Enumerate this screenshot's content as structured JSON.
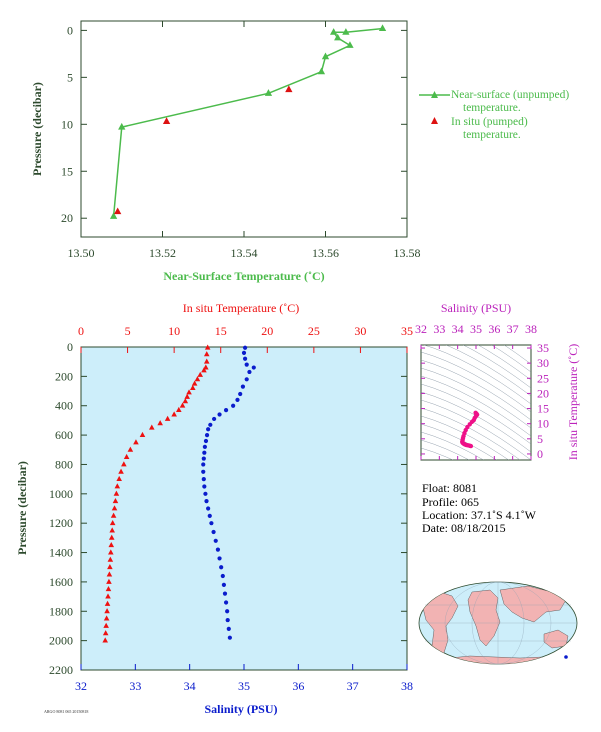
{
  "colors": {
    "axis": "#2d4a2d",
    "nearSurface": "#4cbb4c",
    "pumped": "#dd1111",
    "temperature": "#ee1111",
    "salinity": "#0a1ccc",
    "salinityAxis": "#bb22bb",
    "panelFill": "#cdeefa",
    "tsPoints": "#ee1188",
    "land": "#f2b3b3",
    "ocean": "#cdeefa"
  },
  "chart_data": [
    {
      "type": "line",
      "xlabel": "Near-Surface Temperature (˚C)",
      "ylabel": "Pressure (decibar)",
      "xlim": [
        13.5,
        13.58
      ],
      "ylim": [
        22,
        -1
      ],
      "xticks": [
        "13.50",
        "13.52",
        "13.54",
        "13.56",
        "13.58"
      ],
      "yticks": [
        "0",
        "5",
        "10",
        "15",
        "20"
      ],
      "legend": {
        "placement": "right",
        "entries": [
          "Near-surface (unpumped) temperature.",
          "In situ (pumped) temperature."
        ]
      },
      "series": [
        {
          "name": "Near-surface (unpumped) temperature.",
          "points": [
            [
              13.574,
              -0.2
            ],
            [
              13.565,
              0.2
            ],
            [
              13.562,
              0.2
            ],
            [
              13.563,
              0.8
            ],
            [
              13.566,
              1.6
            ],
            [
              13.56,
              2.8
            ],
            [
              13.559,
              4.4
            ],
            [
              13.546,
              6.7
            ],
            [
              13.51,
              10.3
            ],
            [
              13.508,
              19.8
            ]
          ]
        },
        {
          "name": "In situ (pumped) temperature.",
          "points": [
            [
              13.551,
              6.3
            ],
            [
              13.521,
              9.7
            ],
            [
              13.509,
              19.3
            ]
          ]
        }
      ]
    },
    {
      "type": "scatter",
      "ylabel": "Pressure (decibar)",
      "ylim": [
        2200,
        0
      ],
      "yticks": [
        "0",
        "200",
        "400",
        "600",
        "800",
        "1000",
        "1200",
        "1400",
        "1600",
        "1800",
        "2000",
        "2200"
      ],
      "top_axis": {
        "label": "In situ Temperature (˚C)",
        "range": [
          0,
          35
        ],
        "ticks": [
          "0",
          "5",
          "10",
          "15",
          "20",
          "25",
          "30",
          "35"
        ]
      },
      "bottom_axis": {
        "label": "Salinity (PSU)",
        "range": [
          32,
          38
        ],
        "ticks": [
          "32",
          "33",
          "34",
          "35",
          "36",
          "37",
          "38"
        ]
      },
      "series": [
        {
          "name": "In situ Temperature (˚C)",
          "points": [
            [
              13.6,
              5
            ],
            [
              13.5,
              50
            ],
            [
              13.5,
              100
            ],
            [
              13.4,
              140
            ],
            [
              13.2,
              160
            ],
            [
              12.8,
              190
            ],
            [
              12.5,
              220
            ],
            [
              12.2,
              250
            ],
            [
              12.0,
              280
            ],
            [
              11.6,
              310
            ],
            [
              11.4,
              340
            ],
            [
              11.2,
              370
            ],
            [
              10.9,
              400
            ],
            [
              10.5,
              430
            ],
            [
              10.0,
              460
            ],
            [
              9.3,
              490
            ],
            [
              8.5,
              520
            ],
            [
              7.6,
              550
            ],
            [
              6.6,
              600
            ],
            [
              5.9,
              650
            ],
            [
              5.3,
              700
            ],
            [
              4.9,
              750
            ],
            [
              4.6,
              800
            ],
            [
              4.3,
              850
            ],
            [
              4.1,
              900
            ],
            [
              3.9,
              950
            ],
            [
              3.8,
              1000
            ],
            [
              3.7,
              1050
            ],
            [
              3.6,
              1100
            ],
            [
              3.5,
              1150
            ],
            [
              3.4,
              1200
            ],
            [
              3.35,
              1250
            ],
            [
              3.3,
              1300
            ],
            [
              3.25,
              1350
            ],
            [
              3.2,
              1400
            ],
            [
              3.15,
              1450
            ],
            [
              3.1,
              1500
            ],
            [
              3.05,
              1550
            ],
            [
              3.0,
              1600
            ],
            [
              2.95,
              1650
            ],
            [
              2.9,
              1700
            ],
            [
              2.85,
              1750
            ],
            [
              2.8,
              1800
            ],
            [
              2.75,
              1850
            ],
            [
              2.7,
              1900
            ],
            [
              2.65,
              1950
            ],
            [
              2.6,
              2000
            ]
          ]
        },
        {
          "name": "Salinity (PSU)",
          "points": [
            [
              35.02,
              5
            ],
            [
              35.0,
              40
            ],
            [
              35.02,
              80
            ],
            [
              35.05,
              120
            ],
            [
              35.18,
              140
            ],
            [
              35.1,
              170
            ],
            [
              35.05,
              220
            ],
            [
              34.98,
              270
            ],
            [
              34.93,
              320
            ],
            [
              34.88,
              360
            ],
            [
              34.8,
              400
            ],
            [
              34.67,
              430
            ],
            [
              34.55,
              460
            ],
            [
              34.45,
              490
            ],
            [
              34.38,
              530
            ],
            [
              34.34,
              560
            ],
            [
              34.32,
              600
            ],
            [
              34.3,
              640
            ],
            [
              34.28,
              680
            ],
            [
              34.27,
              720
            ],
            [
              34.26,
              760
            ],
            [
              34.25,
              800
            ],
            [
              34.25,
              850
            ],
            [
              34.26,
              900
            ],
            [
              34.27,
              950
            ],
            [
              34.29,
              1000
            ],
            [
              34.31,
              1050
            ],
            [
              34.34,
              1100
            ],
            [
              34.37,
              1150
            ],
            [
              34.4,
              1200
            ],
            [
              34.44,
              1260
            ],
            [
              34.48,
              1320
            ],
            [
              34.52,
              1380
            ],
            [
              34.55,
              1440
            ],
            [
              34.58,
              1500
            ],
            [
              34.61,
              1560
            ],
            [
              34.63,
              1620
            ],
            [
              34.65,
              1680
            ],
            [
              34.67,
              1740
            ],
            [
              34.69,
              1800
            ],
            [
              34.7,
              1860
            ],
            [
              34.72,
              1920
            ],
            [
              34.74,
              1980
            ]
          ]
        }
      ]
    },
    {
      "type": "scatter",
      "xlabel": "Salinity (PSU)",
      "ylabel": "In situ Temperature (˚C)",
      "xlim": [
        32,
        38
      ],
      "ylim": [
        -2,
        36
      ],
      "xticks": [
        "32",
        "33",
        "34",
        "35",
        "36",
        "37",
        "38"
      ],
      "yticks": [
        "0",
        "5",
        "10",
        "15",
        "20",
        "25",
        "30",
        "35"
      ],
      "points": [
        [
          34.98,
          13.6
        ],
        [
          35.02,
          13.3
        ],
        [
          35.06,
          13.0
        ],
        [
          35.0,
          12.5
        ],
        [
          34.93,
          11.9
        ],
        [
          34.88,
          11.2
        ],
        [
          34.78,
          10.6
        ],
        [
          34.66,
          9.8
        ],
        [
          34.53,
          8.9
        ],
        [
          34.44,
          7.9
        ],
        [
          34.37,
          6.9
        ],
        [
          34.32,
          5.9
        ],
        [
          34.29,
          5.2
        ],
        [
          34.27,
          4.6
        ],
        [
          34.25,
          4.1
        ],
        [
          34.26,
          3.8
        ],
        [
          34.29,
          3.6
        ],
        [
          34.33,
          3.4
        ],
        [
          34.38,
          3.2
        ],
        [
          34.44,
          3.0
        ],
        [
          34.52,
          2.9
        ],
        [
          34.6,
          2.8
        ],
        [
          34.67,
          2.7
        ],
        [
          34.72,
          2.6
        ]
      ]
    }
  ],
  "info": {
    "float": "Float:  8081",
    "profile": "Profile:  065",
    "location": "Location:  37.1˚S   4.1˚W",
    "date": "Date:  08/18/2015"
  },
  "footer_stamp": "ARGO 8081 065 20150818"
}
